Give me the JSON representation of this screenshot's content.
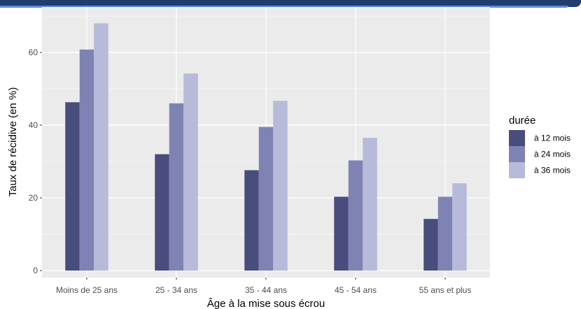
{
  "chart_data": {
    "type": "bar",
    "title": "",
    "xlabel": "Âge à la mise sous écrou",
    "ylabel": "Taux de récidive (en %)",
    "categories": [
      "Moins de 25 ans",
      "25 - 34 ans",
      "35 - 44 ans",
      "45 - 54 ans",
      "55 ans et plus"
    ],
    "series": [
      {
        "name": "à 12 mois",
        "values": [
          46.3,
          32.0,
          27.6,
          20.3,
          14.2
        ],
        "color": "#494d7c"
      },
      {
        "name": "à 24 mois",
        "values": [
          60.8,
          46.0,
          39.5,
          30.3,
          20.3
        ],
        "color": "#7f83b3"
      },
      {
        "name": "à 36 mois",
        "values": [
          68.0,
          54.2,
          46.7,
          36.5,
          24.0
        ],
        "color": "#b7bad8"
      }
    ],
    "ylim": [
      0,
      69
    ],
    "yticks": [
      0,
      20,
      40,
      60
    ],
    "legend_title": "durée",
    "legend_position": "right",
    "grid": true,
    "panel_background": "#ebebeb",
    "grid_color": "#ffffff"
  }
}
